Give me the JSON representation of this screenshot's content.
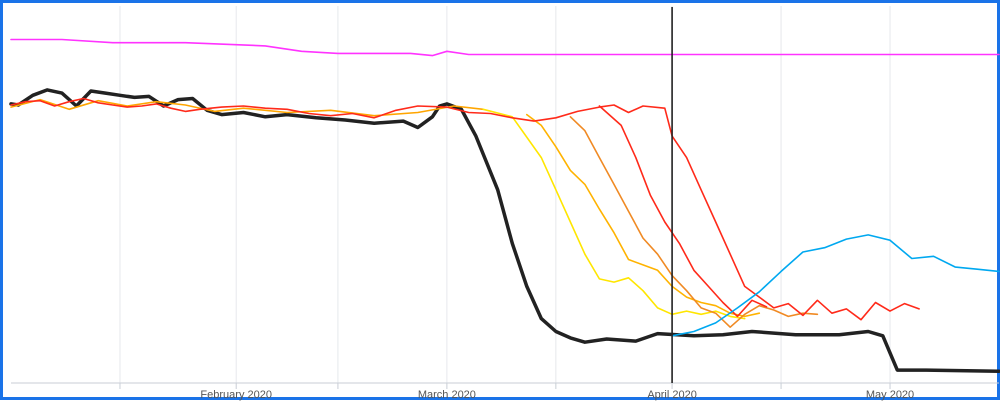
{
  "chart_data": {
    "type": "line",
    "title": "",
    "xlabel": "",
    "ylabel": "",
    "x_unit": "date",
    "x_range": [
      "2020-01-01",
      "2020-05-16"
    ],
    "y_range": [
      -32,
      2
    ],
    "grid": true,
    "legend": "none",
    "x_tick_labels": [
      {
        "label": "February 2020",
        "date": "2020-02-01"
      },
      {
        "label": "March 2020",
        "date": "2020-03-01"
      },
      {
        "label": "April 2020",
        "date": "2020-04-01"
      },
      {
        "label": "May 2020",
        "date": "2020-05-01"
      }
    ],
    "vertical_marker": {
      "date": "2020-04-01",
      "color": "#222222"
    },
    "series": [
      {
        "color": "#ff33ff",
        "stroke": 1.6,
        "points": [
          [
            "2020-01-01",
            0
          ],
          [
            "2020-01-08",
            0
          ],
          [
            "2020-01-15",
            -0.3
          ],
          [
            "2020-01-25",
            -0.3
          ],
          [
            "2020-02-05",
            -0.6
          ],
          [
            "2020-02-10",
            -1.1
          ],
          [
            "2020-02-15",
            -1.3
          ],
          [
            "2020-02-25",
            -1.3
          ],
          [
            "2020-02-28",
            -1.5
          ],
          [
            "2020-03-01",
            -1.1
          ],
          [
            "2020-03-04",
            -1.4
          ],
          [
            "2020-03-20",
            -1.4
          ],
          [
            "2020-04-10",
            -1.4
          ],
          [
            "2020-05-16",
            -1.4
          ]
        ]
      },
      {
        "color": "#222222",
        "stroke": 3.5,
        "points": [
          [
            "2020-01-01",
            -6
          ],
          [
            "2020-01-02",
            -6.1
          ],
          [
            "2020-01-04",
            -5.2
          ],
          [
            "2020-01-06",
            -4.7
          ],
          [
            "2020-01-08",
            -5
          ],
          [
            "2020-01-10",
            -6.2
          ],
          [
            "2020-01-12",
            -4.8
          ],
          [
            "2020-01-14",
            -5
          ],
          [
            "2020-01-16",
            -5.2
          ],
          [
            "2020-01-18",
            -5.4
          ],
          [
            "2020-01-20",
            -5.3
          ],
          [
            "2020-01-22",
            -6.2
          ],
          [
            "2020-01-24",
            -5.6
          ],
          [
            "2020-01-26",
            -5.5
          ],
          [
            "2020-01-28",
            -6.6
          ],
          [
            "2020-01-30",
            -7
          ],
          [
            "2020-02-02",
            -6.8
          ],
          [
            "2020-02-05",
            -7.2
          ],
          [
            "2020-02-08",
            -7
          ],
          [
            "2020-02-12",
            -7.3
          ],
          [
            "2020-02-16",
            -7.5
          ],
          [
            "2020-02-20",
            -7.8
          ],
          [
            "2020-02-24",
            -7.6
          ],
          [
            "2020-02-26",
            -8.2
          ],
          [
            "2020-02-28",
            -7.2
          ],
          [
            "2020-02-29",
            -6.2
          ],
          [
            "2020-03-01",
            -6
          ],
          [
            "2020-03-03",
            -6.5
          ],
          [
            "2020-03-05",
            -9
          ],
          [
            "2020-03-08",
            -14
          ],
          [
            "2020-03-10",
            -19
          ],
          [
            "2020-03-12",
            -23
          ],
          [
            "2020-03-14",
            -26
          ],
          [
            "2020-03-16",
            -27.2
          ],
          [
            "2020-03-18",
            -27.8
          ],
          [
            "2020-03-20",
            -28.2
          ],
          [
            "2020-03-23",
            -27.9
          ],
          [
            "2020-03-27",
            -28.1
          ],
          [
            "2020-03-30",
            -27.4
          ],
          [
            "2020-04-04",
            -27.6
          ],
          [
            "2020-04-08",
            -27.5
          ],
          [
            "2020-04-12",
            -27.2
          ],
          [
            "2020-04-18",
            -27.5
          ],
          [
            "2020-04-24",
            -27.5
          ],
          [
            "2020-04-28",
            -27.2
          ],
          [
            "2020-04-30",
            -27.6
          ],
          [
            "2020-05-02",
            -30.8
          ],
          [
            "2020-05-06",
            -30.8
          ],
          [
            "2020-05-16",
            -30.9
          ]
        ]
      },
      {
        "color": "#ffa500",
        "stroke": 1.6,
        "points": [
          [
            "2020-01-01",
            -6.3
          ],
          [
            "2020-01-05",
            -5.6
          ],
          [
            "2020-01-09",
            -6.5
          ],
          [
            "2020-01-13",
            -5.7
          ],
          [
            "2020-01-17",
            -6.2
          ],
          [
            "2020-01-21",
            -5.8
          ],
          [
            "2020-01-25",
            -6.1
          ],
          [
            "2020-01-29",
            -6.7
          ],
          [
            "2020-02-02",
            -6.4
          ],
          [
            "2020-02-08",
            -6.8
          ],
          [
            "2020-02-14",
            -6.6
          ],
          [
            "2020-02-20",
            -7.1
          ],
          [
            "2020-02-26",
            -6.8
          ],
          [
            "2020-03-02",
            -6.2
          ],
          [
            "2020-03-06",
            -6.5
          ]
        ]
      },
      {
        "color": "#ffe600",
        "stroke": 1.6,
        "points": [
          [
            "2020-03-06",
            -6.5
          ],
          [
            "2020-03-10",
            -7.2
          ],
          [
            "2020-03-14",
            -11
          ],
          [
            "2020-03-16",
            -14
          ],
          [
            "2020-03-18",
            -17
          ],
          [
            "2020-03-20",
            -20
          ],
          [
            "2020-03-22",
            -22.3
          ],
          [
            "2020-03-24",
            -22.6
          ],
          [
            "2020-03-26",
            -22.2
          ],
          [
            "2020-03-28",
            -23.4
          ],
          [
            "2020-03-30",
            -25
          ],
          [
            "2020-04-01",
            -25.6
          ],
          [
            "2020-04-03",
            -25.3
          ],
          [
            "2020-04-05",
            -25.6
          ],
          [
            "2020-04-07",
            -25.3
          ],
          [
            "2020-04-09",
            -25.8
          ],
          [
            "2020-04-11",
            -26
          ]
        ]
      },
      {
        "color": "#ffb300",
        "stroke": 1.6,
        "points": [
          [
            "2020-03-12",
            -7
          ],
          [
            "2020-03-14",
            -8
          ],
          [
            "2020-03-16",
            -10
          ],
          [
            "2020-03-18",
            -12.2
          ],
          [
            "2020-03-20",
            -13.5
          ],
          [
            "2020-03-22",
            -15.8
          ],
          [
            "2020-03-24",
            -18
          ],
          [
            "2020-03-26",
            -20.5
          ],
          [
            "2020-03-28",
            -21
          ],
          [
            "2020-03-30",
            -21.5
          ],
          [
            "2020-04-01",
            -23
          ],
          [
            "2020-04-03",
            -24
          ],
          [
            "2020-04-05",
            -24.5
          ],
          [
            "2020-04-07",
            -24.8
          ],
          [
            "2020-04-09",
            -25.5
          ],
          [
            "2020-04-11",
            -25.8
          ],
          [
            "2020-04-13",
            -25.5
          ]
        ]
      },
      {
        "color": "#f08a24",
        "stroke": 1.6,
        "points": [
          [
            "2020-03-18",
            -7.2
          ],
          [
            "2020-03-20",
            -8.5
          ],
          [
            "2020-03-22",
            -11
          ],
          [
            "2020-03-24",
            -13.5
          ],
          [
            "2020-03-26",
            -16
          ],
          [
            "2020-03-28",
            -18.5
          ],
          [
            "2020-03-30",
            -20
          ],
          [
            "2020-04-01",
            -22
          ],
          [
            "2020-04-03",
            -23.4
          ],
          [
            "2020-04-05",
            -25
          ],
          [
            "2020-04-07",
            -25.5
          ],
          [
            "2020-04-09",
            -26.8
          ],
          [
            "2020-04-11",
            -25.6
          ],
          [
            "2020-04-13",
            -24.8
          ],
          [
            "2020-04-15",
            -25.2
          ],
          [
            "2020-04-17",
            -25.8
          ],
          [
            "2020-04-19",
            -25.5
          ],
          [
            "2020-04-21",
            -25.6
          ]
        ]
      },
      {
        "color": "#ff2a1a",
        "stroke": 1.6,
        "points": [
          [
            "2020-01-01",
            -6.1
          ],
          [
            "2020-01-03",
            -5.8
          ],
          [
            "2020-01-05",
            -5.7
          ],
          [
            "2020-01-07",
            -6.2
          ],
          [
            "2020-01-09",
            -5.8
          ],
          [
            "2020-01-11",
            -5.5
          ],
          [
            "2020-01-13",
            -5.9
          ],
          [
            "2020-01-15",
            -6.1
          ],
          [
            "2020-01-17",
            -6.3
          ],
          [
            "2020-01-19",
            -6.2
          ],
          [
            "2020-01-21",
            -6
          ],
          [
            "2020-01-23",
            -6.4
          ],
          [
            "2020-01-25",
            -6.7
          ],
          [
            "2020-01-27",
            -6.5
          ],
          [
            "2020-01-30",
            -6.3
          ],
          [
            "2020-02-02",
            -6.2
          ],
          [
            "2020-02-05",
            -6.4
          ],
          [
            "2020-02-08",
            -6.5
          ],
          [
            "2020-02-11",
            -6.9
          ],
          [
            "2020-02-14",
            -7.1
          ],
          [
            "2020-02-17",
            -6.9
          ],
          [
            "2020-02-20",
            -7.3
          ],
          [
            "2020-02-23",
            -6.6
          ],
          [
            "2020-02-26",
            -6.2
          ],
          [
            "2020-03-01",
            -6.3
          ],
          [
            "2020-03-04",
            -6.8
          ],
          [
            "2020-03-07",
            -6.9
          ],
          [
            "2020-03-10",
            -7.3
          ],
          [
            "2020-03-13",
            -7.6
          ],
          [
            "2020-03-16",
            -7.3
          ],
          [
            "2020-03-19",
            -6.7
          ],
          [
            "2020-03-22",
            -6.3
          ],
          [
            "2020-03-24",
            -6.1
          ],
          [
            "2020-03-26",
            -6.8
          ],
          [
            "2020-03-28",
            -6.2
          ],
          [
            "2020-03-31",
            -6.4
          ],
          [
            "2020-04-01",
            -9
          ],
          [
            "2020-04-03",
            -11
          ],
          [
            "2020-04-05",
            -14
          ],
          [
            "2020-04-07",
            -17
          ],
          [
            "2020-04-09",
            -20
          ],
          [
            "2020-04-11",
            -23
          ],
          [
            "2020-04-13",
            -24
          ],
          [
            "2020-04-15",
            -25
          ],
          [
            "2020-04-17",
            -24.6
          ],
          [
            "2020-04-19",
            -25.7
          ],
          [
            "2020-04-21",
            -24.3
          ],
          [
            "2020-04-23",
            -25.5
          ],
          [
            "2020-04-25",
            -25.1
          ],
          [
            "2020-04-27",
            -26.1
          ],
          [
            "2020-04-29",
            -24.5
          ],
          [
            "2020-05-01",
            -25.3
          ],
          [
            "2020-05-03",
            -24.6
          ],
          [
            "2020-05-05",
            -25.1
          ]
        ]
      },
      {
        "color": "#ff2a1a",
        "stroke": 1.6,
        "points": [
          [
            "2020-03-22",
            -6.2
          ],
          [
            "2020-03-25",
            -8
          ],
          [
            "2020-03-27",
            -11
          ],
          [
            "2020-03-29",
            -14.5
          ],
          [
            "2020-03-31",
            -17
          ],
          [
            "2020-04-02",
            -19
          ],
          [
            "2020-04-04",
            -21.5
          ],
          [
            "2020-04-06",
            -23
          ],
          [
            "2020-04-08",
            -24.5
          ],
          [
            "2020-04-10",
            -25.8
          ],
          [
            "2020-04-12",
            -24.3
          ],
          [
            "2020-04-14",
            -24.9
          ]
        ]
      },
      {
        "color": "#00a8f0",
        "stroke": 1.6,
        "points": [
          [
            "2020-04-01",
            -27.6
          ],
          [
            "2020-04-04",
            -27.2
          ],
          [
            "2020-04-07",
            -26.4
          ],
          [
            "2020-04-10",
            -25
          ],
          [
            "2020-04-13",
            -23.5
          ],
          [
            "2020-04-16",
            -21.6
          ],
          [
            "2020-04-19",
            -19.8
          ],
          [
            "2020-04-22",
            -19.4
          ],
          [
            "2020-04-25",
            -18.6
          ],
          [
            "2020-04-28",
            -18.2
          ],
          [
            "2020-05-01",
            -18.7
          ],
          [
            "2020-05-04",
            -20.4
          ],
          [
            "2020-05-07",
            -20.2
          ],
          [
            "2020-05-10",
            -21.2
          ],
          [
            "2020-05-13",
            -21.4
          ],
          [
            "2020-05-16",
            -21.6
          ]
        ]
      }
    ]
  }
}
